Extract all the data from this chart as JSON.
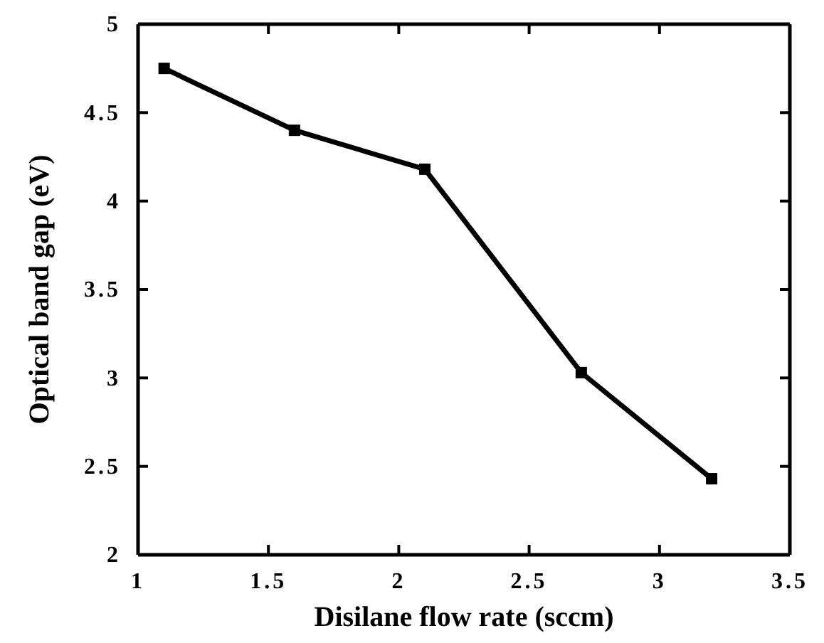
{
  "chart_data": {
    "type": "line",
    "xlabel": "Disilane flow rate (sccm)",
    "ylabel": "Optical band gap (eV)",
    "x": [
      1.1,
      1.6,
      2.1,
      2.7,
      3.2
    ],
    "series": [
      {
        "color": "#000000",
        "values": [
          4.75,
          4.4,
          4.18,
          3.03,
          2.43
        ]
      }
    ],
    "xlim": [
      1,
      3.5
    ],
    "xticks": [
      1,
      1.5,
      2,
      2.5,
      3,
      3.5
    ],
    "ylim": [
      2,
      5
    ],
    "yticks": [
      2,
      2.5,
      3,
      3.5,
      4,
      4.5,
      5
    ],
    "marker": "square",
    "line_style": "solid"
  }
}
